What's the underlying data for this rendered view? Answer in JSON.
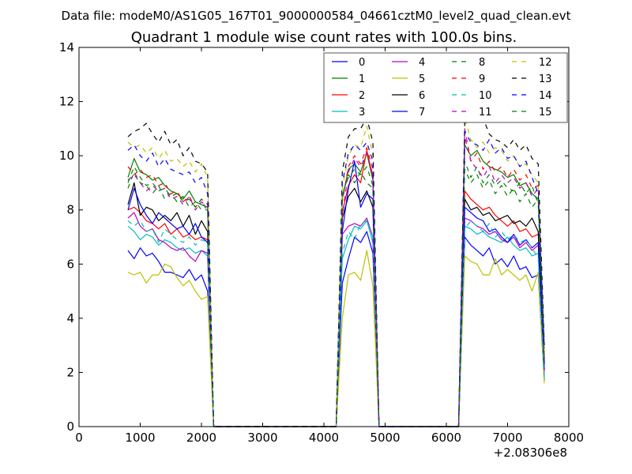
{
  "figure": {
    "suptitle": "Data file: modeM0/AS1G05_167T01_9000000584_04661cztM0_level2_quad_clean.evt",
    "title": "Quadrant 1 module wise count rates with 100.0s bins.",
    "x_offset_label": "+2.08306e8"
  },
  "chart_data": {
    "type": "line",
    "title": "Quadrant 1 module wise count rates with 100.0s bins.",
    "xlabel": "",
    "ylabel": "",
    "xlim": [
      0,
      8000
    ],
    "ylim": [
      0,
      14
    ],
    "x_ticks": [
      0,
      1000,
      2000,
      3000,
      4000,
      5000,
      6000,
      7000,
      8000
    ],
    "y_ticks": [
      0,
      2,
      4,
      6,
      8,
      10,
      12,
      14
    ],
    "x_tick_labels": [
      "0",
      "1000",
      "2000",
      "3000",
      "4000",
      "5000",
      "6000",
      "7000",
      "8000"
    ],
    "y_tick_labels": [
      "0",
      "2",
      "4",
      "6",
      "8",
      "10",
      "12",
      "14"
    ],
    "x_offset": "+2.08306e8",
    "grid": false,
    "legend_position": "top-right",
    "legend_columns": 4,
    "x": [
      800,
      900,
      1000,
      1100,
      1200,
      1300,
      1400,
      1500,
      1600,
      1700,
      1800,
      1900,
      2000,
      2100,
      2200,
      2300,
      2400,
      2500,
      2600,
      2700,
      2800,
      2900,
      3000,
      3100,
      3200,
      3300,
      3400,
      3500,
      3600,
      3700,
      3800,
      3900,
      4000,
      4100,
      4200,
      4300,
      4400,
      4500,
      4600,
      4700,
      4800,
      4900,
      5000,
      5100,
      5200,
      5300,
      5400,
      5500,
      5600,
      5700,
      5800,
      5900,
      6000,
      6100,
      6200,
      6300,
      6400,
      6500,
      6600,
      6700,
      6800,
      6900,
      7000,
      7100,
      7200,
      7300,
      7400,
      7500,
      7600
    ],
    "series": [
      {
        "name": "0",
        "color": "#0000ff",
        "dash": "solid",
        "values": [
          6.5,
          6.2,
          6.6,
          6.3,
          6.4,
          6.1,
          5.7,
          5.7,
          5.6,
          5.5,
          5.8,
          5.4,
          5.6,
          5.0,
          0,
          0,
          0,
          0,
          0,
          0,
          0,
          0,
          0,
          0,
          0,
          0,
          0,
          0,
          0,
          0,
          0,
          0,
          0,
          0,
          0,
          5.3,
          6.2,
          7.0,
          6.8,
          7.2,
          6.4,
          0,
          0,
          0,
          0,
          0,
          0,
          0,
          0,
          0,
          0,
          0,
          0,
          0,
          0,
          7.0,
          6.7,
          6.5,
          6.3,
          6.6,
          6.0,
          6.2,
          5.9,
          6.3,
          5.8,
          5.9,
          5.5,
          5.6,
          1.7
        ]
      },
      {
        "name": "1",
        "color": "#008000",
        "dash": "solid",
        "values": [
          9.2,
          9.9,
          9.4,
          9.3,
          9.1,
          9.2,
          8.9,
          8.7,
          8.6,
          8.4,
          8.7,
          8.3,
          8.2,
          8.1,
          0,
          0,
          0,
          0,
          0,
          0,
          0,
          0,
          0,
          0,
          0,
          0,
          0,
          0,
          0,
          0,
          0,
          0,
          0,
          0,
          0,
          8.4,
          9.5,
          9.7,
          9.4,
          10.1,
          9.1,
          0,
          0,
          0,
          0,
          0,
          0,
          0,
          0,
          0,
          0,
          0,
          0,
          0,
          0,
          10.4,
          10.0,
          10.2,
          9.8,
          9.6,
          9.5,
          9.4,
          9.2,
          9.3,
          8.9,
          9.0,
          8.6,
          8.4,
          2.5
        ]
      },
      {
        "name": "2",
        "color": "#ff0000",
        "dash": "solid",
        "values": [
          8.0,
          8.1,
          7.9,
          7.6,
          7.5,
          7.3,
          7.5,
          7.1,
          7.3,
          7.0,
          7.1,
          6.9,
          7.0,
          6.9,
          0,
          0,
          0,
          0,
          0,
          0,
          0,
          0,
          0,
          0,
          0,
          0,
          0,
          0,
          0,
          0,
          0,
          0,
          0,
          0,
          0,
          7.9,
          8.9,
          9.3,
          9.0,
          10.2,
          9.2,
          0,
          0,
          0,
          0,
          0,
          0,
          0,
          0,
          0,
          0,
          0,
          0,
          0,
          0,
          8.7,
          8.4,
          8.2,
          8.0,
          8.1,
          7.8,
          7.6,
          7.4,
          7.6,
          7.2,
          7.3,
          7.0,
          7.1,
          2.2
        ]
      },
      {
        "name": "3",
        "color": "#00bfbf",
        "dash": "solid",
        "values": [
          7.4,
          7.2,
          6.9,
          7.1,
          7.0,
          6.7,
          6.9,
          6.8,
          6.6,
          6.5,
          6.6,
          6.4,
          6.5,
          6.3,
          0,
          0,
          0,
          0,
          0,
          0,
          0,
          0,
          0,
          0,
          0,
          0,
          0,
          0,
          0,
          0,
          0,
          0,
          0,
          0,
          0,
          6.2,
          6.9,
          7.4,
          7.3,
          7.6,
          6.8,
          0,
          0,
          0,
          0,
          0,
          0,
          0,
          0,
          0,
          0,
          0,
          0,
          0,
          0,
          7.4,
          7.3,
          7.1,
          7.2,
          7.0,
          6.9,
          6.8,
          7.0,
          6.7,
          6.5,
          6.6,
          6.3,
          6.4,
          1.9
        ]
      },
      {
        "name": "4",
        "color": "#bf00bf",
        "dash": "solid",
        "values": [
          7.7,
          7.9,
          7.4,
          7.2,
          7.3,
          6.9,
          6.8,
          6.6,
          6.5,
          6.6,
          6.3,
          6.1,
          6.5,
          6.4,
          0,
          0,
          0,
          0,
          0,
          0,
          0,
          0,
          0,
          0,
          0,
          0,
          0,
          0,
          0,
          0,
          0,
          0,
          0,
          0,
          0,
          7.1,
          7.4,
          7.5,
          7.4,
          7.7,
          7.0,
          0,
          0,
          0,
          0,
          0,
          0,
          0,
          0,
          0,
          0,
          0,
          0,
          0,
          0,
          7.7,
          7.6,
          7.4,
          7.3,
          7.1,
          7.2,
          6.9,
          6.8,
          7.0,
          6.6,
          6.8,
          6.5,
          6.7,
          2.0
        ]
      },
      {
        "name": "5",
        "color": "#bfbf00",
        "dash": "solid",
        "values": [
          5.7,
          5.6,
          5.7,
          5.3,
          5.6,
          5.6,
          6.0,
          5.9,
          5.5,
          5.2,
          5.4,
          5.0,
          4.7,
          4.8,
          0,
          0,
          0,
          0,
          0,
          0,
          0,
          0,
          0,
          0,
          0,
          0,
          0,
          0,
          0,
          0,
          0,
          0,
          0,
          0,
          0,
          4.0,
          5.6,
          5.7,
          5.4,
          6.5,
          5.2,
          0,
          0,
          0,
          0,
          0,
          0,
          0,
          0,
          0,
          0,
          0,
          0,
          0,
          0,
          6.3,
          6.1,
          6.0,
          5.6,
          5.6,
          6.2,
          5.6,
          5.8,
          5.6,
          5.4,
          5.6,
          5.0,
          5.7,
          1.6
        ]
      },
      {
        "name": "6",
        "color": "#000000",
        "dash": "solid",
        "values": [
          8.2,
          9.0,
          7.8,
          8.1,
          8.0,
          7.6,
          7.8,
          7.6,
          7.9,
          7.4,
          7.8,
          7.1,
          7.6,
          7.2,
          0,
          0,
          0,
          0,
          0,
          0,
          0,
          0,
          0,
          0,
          0,
          0,
          0,
          0,
          0,
          0,
          0,
          0,
          0,
          0,
          0,
          7.7,
          8.5,
          8.8,
          8.3,
          8.7,
          8.1,
          0,
          0,
          0,
          0,
          0,
          0,
          0,
          0,
          0,
          0,
          0,
          0,
          0,
          0,
          8.4,
          8.0,
          8.1,
          7.8,
          7.9,
          7.6,
          7.7,
          7.8,
          7.5,
          7.6,
          7.4,
          7.7,
          7.2,
          2.3
        ]
      },
      {
        "name": "7",
        "color": "#0000ff",
        "dash": "solid",
        "values": [
          8.0,
          8.8,
          8.2,
          7.8,
          7.5,
          7.9,
          7.7,
          7.5,
          7.3,
          7.4,
          7.1,
          7.5,
          7.0,
          6.8,
          0,
          0,
          0,
          0,
          0,
          0,
          0,
          0,
          0,
          0,
          0,
          0,
          0,
          0,
          0,
          0,
          0,
          0,
          0,
          0,
          0,
          7.2,
          8.8,
          9.8,
          8.1,
          8.6,
          8.4,
          0,
          0,
          0,
          0,
          0,
          0,
          0,
          0,
          0,
          0,
          0,
          0,
          0,
          0,
          8.1,
          7.9,
          7.7,
          7.6,
          7.2,
          7.3,
          7.0,
          6.8,
          7.1,
          6.7,
          6.9,
          6.6,
          6.8,
          2.1
        ]
      },
      {
        "name": "8",
        "color": "#008000",
        "dash": "dashed",
        "values": [
          8.8,
          9.4,
          9.0,
          8.9,
          8.6,
          8.9,
          8.4,
          8.6,
          8.3,
          8.5,
          8.1,
          8.3,
          8.0,
          8.0,
          0,
          0,
          0,
          0,
          0,
          0,
          0,
          0,
          0,
          0,
          0,
          0,
          0,
          0,
          0,
          0,
          0,
          0,
          0,
          0,
          0,
          8.6,
          9.2,
          9.5,
          9.3,
          9.6,
          8.9,
          0,
          0,
          0,
          0,
          0,
          0,
          0,
          0,
          0,
          0,
          0,
          0,
          0,
          0,
          9.8,
          9.2,
          9.6,
          9.0,
          9.3,
          8.9,
          9.1,
          8.8,
          8.7,
          9.0,
          8.6,
          8.9,
          8.2,
          2.6
        ]
      },
      {
        "name": "9",
        "color": "#ff0000",
        "dash": "dashed",
        "values": [
          9.6,
          9.3,
          9.5,
          9.2,
          9.3,
          8.9,
          9.0,
          8.6,
          8.7,
          8.3,
          8.5,
          8.1,
          8.4,
          8.2,
          0,
          0,
          0,
          0,
          0,
          0,
          0,
          0,
          0,
          0,
          0,
          0,
          0,
          0,
          0,
          0,
          0,
          0,
          0,
          0,
          0,
          8.3,
          9.6,
          10.0,
          9.7,
          10.3,
          9.5,
          0,
          0,
          0,
          0,
          0,
          0,
          0,
          0,
          0,
          0,
          0,
          0,
          0,
          0,
          10.7,
          9.8,
          10.1,
          9.5,
          9.8,
          9.4,
          9.6,
          9.2,
          9.5,
          9.1,
          9.3,
          8.8,
          8.9,
          2.6
        ]
      },
      {
        "name": "10",
        "color": "#00bfbf",
        "dash": "dashed",
        "values": [
          7.6,
          7.4,
          7.6,
          7.2,
          7.3,
          6.8,
          7.3,
          7.1,
          6.9,
          6.8,
          7.0,
          6.7,
          6.9,
          6.8,
          0,
          0,
          0,
          0,
          0,
          0,
          0,
          0,
          0,
          0,
          0,
          0,
          0,
          0,
          0,
          0,
          0,
          0,
          0,
          0,
          0,
          6.4,
          7.2,
          6.9,
          7.5,
          7.6,
          7.0,
          0,
          0,
          0,
          0,
          0,
          0,
          0,
          0,
          0,
          0,
          0,
          0,
          0,
          0,
          7.3,
          7.6,
          7.4,
          7.2,
          7.5,
          7.0,
          7.2,
          6.9,
          7.1,
          6.8,
          6.9,
          6.6,
          6.2,
          1.8
        ]
      },
      {
        "name": "11",
        "color": "#bf00bf",
        "dash": "dashed",
        "values": [
          9.1,
          9.3,
          9.0,
          8.7,
          8.9,
          8.7,
          8.8,
          8.4,
          8.5,
          8.2,
          8.5,
          8.0,
          8.3,
          8.1,
          0,
          0,
          0,
          0,
          0,
          0,
          0,
          0,
          0,
          0,
          0,
          0,
          0,
          0,
          0,
          0,
          0,
          0,
          0,
          0,
          0,
          7.8,
          9.4,
          9.9,
          9.6,
          10.1,
          9.3,
          0,
          0,
          0,
          0,
          0,
          0,
          0,
          0,
          0,
          0,
          0,
          0,
          0,
          0,
          11.0,
          9.8,
          9.5,
          9.2,
          9.6,
          9.0,
          9.3,
          9.0,
          9.2,
          8.8,
          9.0,
          8.5,
          8.8,
          2.4
        ]
      },
      {
        "name": "12",
        "color": "#bfbf00",
        "dash": "dashed",
        "values": [
          10.5,
          10.3,
          10.4,
          10.1,
          10.3,
          9.9,
          10.2,
          9.8,
          9.9,
          9.6,
          9.8,
          9.4,
          9.7,
          9.2,
          0,
          0,
          0,
          0,
          0,
          0,
          0,
          0,
          0,
          0,
          0,
          0,
          0,
          0,
          0,
          0,
          0,
          0,
          0,
          0,
          0,
          8.8,
          10.0,
          10.4,
          10.3,
          11.1,
          10.0,
          0,
          0,
          0,
          0,
          0,
          0,
          0,
          0,
          0,
          0,
          0,
          0,
          0,
          0,
          11.4,
          10.6,
          10.3,
          10.5,
          10.1,
          10.3,
          10.2,
          9.8,
          10.0,
          9.6,
          9.7,
          9.3,
          9.0,
          2.8
        ]
      },
      {
        "name": "13",
        "color": "#000000",
        "dash": "dashed",
        "values": [
          10.7,
          10.9,
          11.0,
          11.2,
          10.8,
          10.5,
          10.9,
          10.4,
          10.6,
          10.0,
          10.3,
          9.8,
          9.7,
          9.4,
          0,
          0,
          0,
          0,
          0,
          0,
          0,
          0,
          0,
          0,
          0,
          0,
          0,
          0,
          0,
          0,
          0,
          0,
          0,
          0,
          0,
          9.4,
          10.7,
          11.0,
          11.0,
          11.4,
          10.5,
          0,
          0,
          0,
          0,
          0,
          0,
          0,
          0,
          0,
          0,
          0,
          0,
          0,
          0,
          11.2,
          11.5,
          11.9,
          11.4,
          10.8,
          10.6,
          10.5,
          10.3,
          10.6,
          10.2,
          10.4,
          9.9,
          9.7,
          3.0
        ]
      },
      {
        "name": "14",
        "color": "#0000ff",
        "dash": "dashed",
        "values": [
          10.2,
          10.4,
          10.0,
          9.8,
          10.1,
          9.6,
          9.9,
          9.5,
          9.4,
          9.3,
          9.4,
          9.0,
          9.2,
          8.6,
          0,
          0,
          0,
          0,
          0,
          0,
          0,
          0,
          0,
          0,
          0,
          0,
          0,
          0,
          0,
          0,
          0,
          0,
          0,
          0,
          0,
          9.0,
          10.1,
          10.4,
          10.2,
          10.5,
          9.8,
          0,
          0,
          0,
          0,
          0,
          0,
          0,
          0,
          0,
          0,
          0,
          0,
          0,
          0,
          10.9,
          10.5,
          10.4,
          10.2,
          10.6,
          10.1,
          10.3,
          9.9,
          10.0,
          9.6,
          9.8,
          9.2,
          8.6,
          2.9
        ]
      },
      {
        "name": "15",
        "color": "#008000",
        "dash": "dashed",
        "values": [
          9.0,
          9.6,
          9.2,
          8.9,
          9.0,
          8.7,
          8.8,
          8.5,
          8.6,
          8.3,
          8.4,
          8.1,
          8.4,
          7.9,
          0,
          0,
          0,
          0,
          0,
          0,
          0,
          0,
          0,
          0,
          0,
          0,
          0,
          0,
          0,
          0,
          0,
          0,
          0,
          0,
          0,
          8.5,
          9.3,
          9.0,
          9.4,
          9.0,
          8.8,
          0,
          0,
          0,
          0,
          0,
          0,
          0,
          0,
          0,
          0,
          0,
          0,
          0,
          0,
          9.5,
          9.0,
          9.3,
          8.8,
          9.1,
          8.6,
          8.9,
          8.5,
          8.8,
          8.3,
          8.6,
          8.1,
          8.4,
          2.5
        ]
      }
    ]
  }
}
